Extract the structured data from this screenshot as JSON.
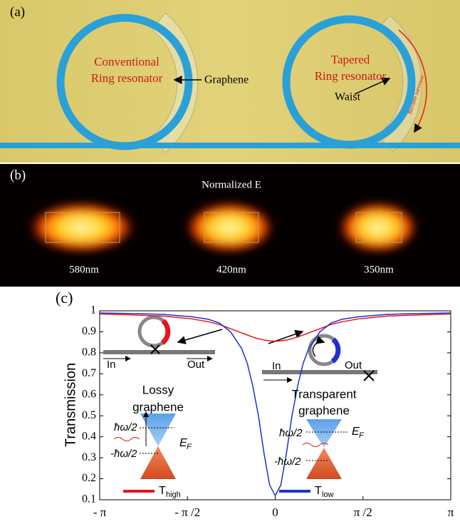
{
  "panel_a": {
    "label": "(a)",
    "left_title": [
      "Conventional",
      "Ring resonator"
    ],
    "graphene": "Graphene",
    "right_title": [
      "Tapered",
      "Ring resonator"
    ],
    "waist": "Waist",
    "narrow": "Become narrower"
  },
  "panel_b": {
    "label": "(b)",
    "title": "Normalized E",
    "widths": [
      "580nm",
      "420nm",
      "350nm"
    ]
  },
  "chart_data": {
    "type": "line",
    "panel_label": "(c)",
    "y_label": "Transmission",
    "x": [
      -3.1416,
      -2.5,
      -2.0,
      -1.5,
      -1.2,
      -1.0,
      -0.8,
      -0.6,
      -0.5,
      -0.4,
      -0.3,
      -0.2,
      -0.1,
      0,
      0.1,
      0.2,
      0.3,
      0.4,
      0.5,
      0.6,
      0.8,
      1.0,
      1.2,
      1.5,
      2.0,
      2.5,
      3.1416
    ],
    "series": [
      {
        "name": "T",
        "name_subscript": "high",
        "color": "#e8141b",
        "values": [
          0.985,
          0.98,
          0.975,
          0.962,
          0.948,
          0.935,
          0.915,
          0.895,
          0.885,
          0.875,
          0.867,
          0.861,
          0.857,
          0.855,
          0.857,
          0.861,
          0.867,
          0.875,
          0.885,
          0.895,
          0.915,
          0.935,
          0.948,
          0.962,
          0.975,
          0.98,
          0.985
        ]
      },
      {
        "name": "T",
        "name_subscript": "low",
        "color": "#1f2fd0",
        "values": [
          0.99,
          0.987,
          0.983,
          0.972,
          0.96,
          0.942,
          0.9,
          0.82,
          0.75,
          0.64,
          0.5,
          0.32,
          0.17,
          0.12,
          0.17,
          0.32,
          0.5,
          0.64,
          0.75,
          0.82,
          0.9,
          0.942,
          0.96,
          0.972,
          0.983,
          0.987,
          0.99
        ]
      }
    ],
    "xlim": [
      -3.1416,
      3.1416
    ],
    "xticks": [
      {
        "value": -3.1416,
        "label": "- π"
      },
      {
        "value": -1.5708,
        "label": "- π /2"
      },
      0,
      {
        "value": 1.5708,
        "label": "π /2"
      },
      {
        "value": 3.1416,
        "label": "π"
      }
    ],
    "ylim": [
      0.1,
      1
    ],
    "yticks": [
      0.1,
      0.2,
      0.3,
      0.4,
      0.5,
      0.6,
      0.7,
      0.8,
      0.9,
      1
    ],
    "annotations": [
      "In",
      "Out",
      "Lossy",
      "graphene",
      "ħω/2",
      "-ħω/2",
      "E",
      "F",
      "In",
      "Out",
      "Transparent",
      "graphene",
      "ħω/2",
      "-ħω/2",
      "E",
      "F"
    ]
  }
}
